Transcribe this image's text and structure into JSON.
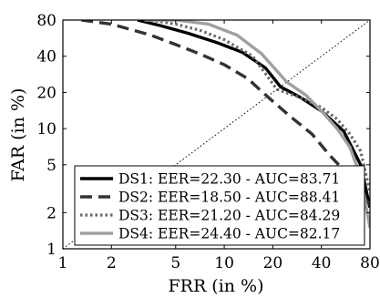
{
  "chart_data": {
    "type": "line",
    "title": "",
    "xlabel": "FRR (in %)",
    "ylabel": "FAR (in %)",
    "x_scale": "log",
    "y_scale": "log",
    "xlim": [
      1,
      80
    ],
    "ylim": [
      1,
      80
    ],
    "x_ticks": [
      1,
      2,
      5,
      10,
      20,
      40,
      80
    ],
    "y_ticks": [
      1,
      2,
      5,
      10,
      20,
      40,
      80
    ],
    "grid": false,
    "legend_position": "bottom-left",
    "reference_line": {
      "style": "dotted",
      "points": [
        [
          1,
          1
        ],
        [
          80,
          80
        ]
      ]
    },
    "series": [
      {
        "name": "DS1: EER=22.30 - AUC=83.71",
        "style": "solid",
        "color": "#000000",
        "points": [
          [
            2.9,
            80
          ],
          [
            4,
            72
          ],
          [
            6,
            62
          ],
          [
            9,
            52
          ],
          [
            13,
            43
          ],
          [
            18,
            32
          ],
          [
            22.3,
            22.3
          ],
          [
            30,
            18
          ],
          [
            40,
            14
          ],
          [
            55,
            9.5
          ],
          [
            70,
            5
          ],
          [
            80,
            2.2
          ]
        ]
      },
      {
        "name": "DS2: EER=18.50 - AUC=88.41",
        "style": "dashed",
        "color": "#333333",
        "points": [
          [
            1.3,
            80
          ],
          [
            2,
            74
          ],
          [
            3.5,
            60
          ],
          [
            5,
            50
          ],
          [
            7,
            42
          ],
          [
            10,
            34
          ],
          [
            14,
            26
          ],
          [
            18.5,
            18.5
          ],
          [
            25,
            13
          ],
          [
            35,
            9
          ],
          [
            45,
            6
          ],
          [
            60,
            4
          ],
          [
            80,
            2.3
          ]
        ]
      },
      {
        "name": "DS3: EER=21.20 - AUC=84.29",
        "style": "dotted",
        "color": "#666666",
        "points": [
          [
            3.5,
            80
          ],
          [
            5,
            74
          ],
          [
            7,
            66
          ],
          [
            10,
            55
          ],
          [
            15,
            40
          ],
          [
            21.2,
            21.2
          ],
          [
            30,
            18
          ],
          [
            40,
            15
          ],
          [
            50,
            12
          ],
          [
            60,
            9
          ],
          [
            70,
            6.5
          ],
          [
            80,
            3
          ]
        ]
      },
      {
        "name": "DS4: EER=24.40 - AUC=82.17",
        "style": "solid",
        "color": "#a0a0a0",
        "points": [
          [
            3.2,
            80
          ],
          [
            5,
            80
          ],
          [
            8,
            74
          ],
          [
            12,
            60
          ],
          [
            17,
            42
          ],
          [
            24.4,
            24.4
          ],
          [
            32,
            19
          ],
          [
            40,
            14
          ],
          [
            50,
            10
          ],
          [
            60,
            7
          ],
          [
            70,
            4
          ],
          [
            80,
            1.5
          ]
        ]
      }
    ]
  }
}
